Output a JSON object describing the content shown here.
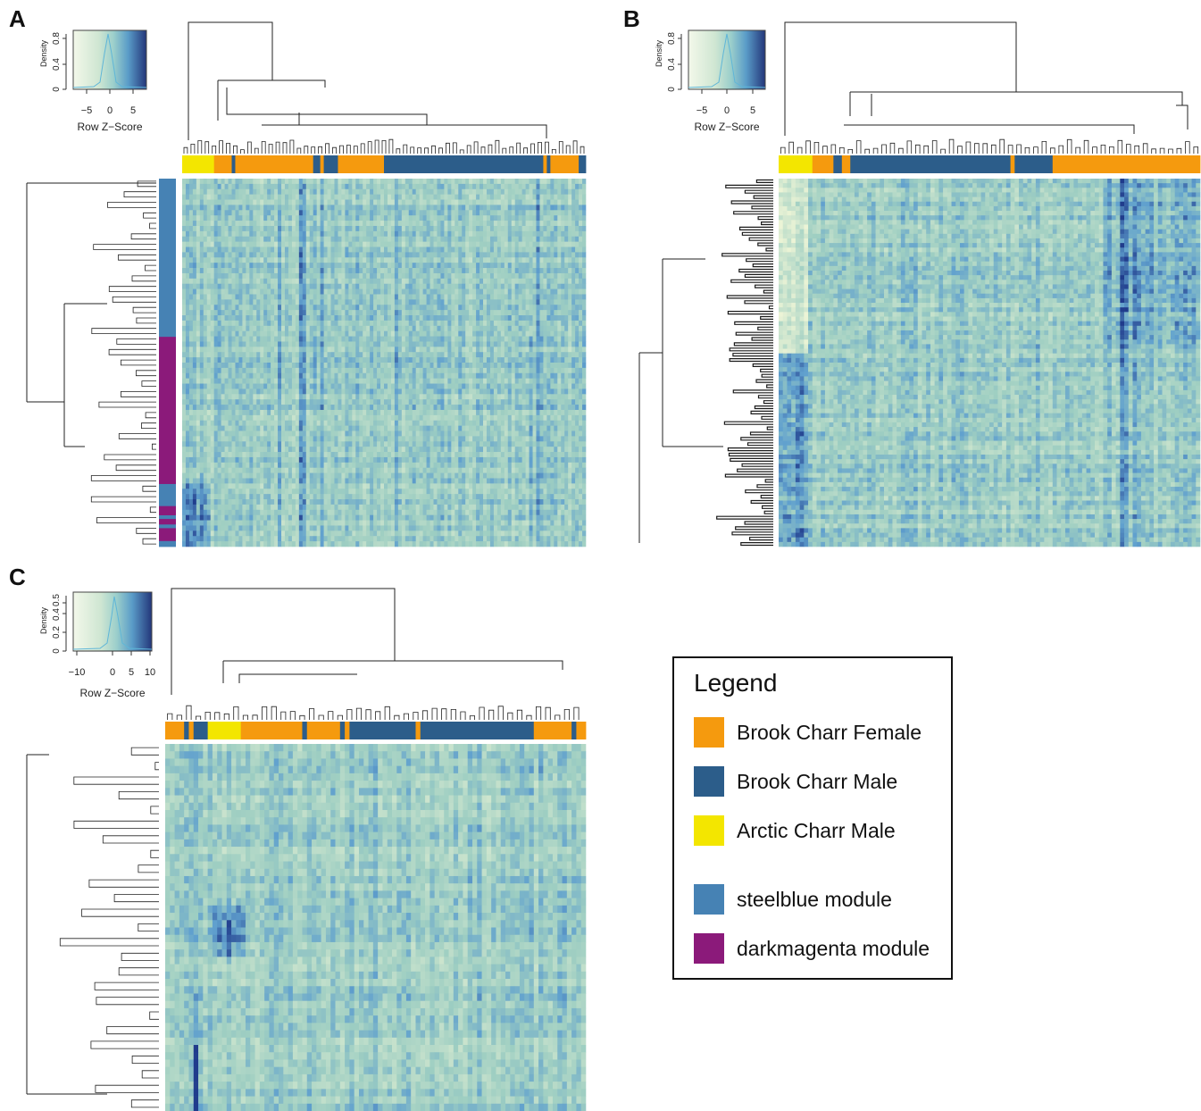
{
  "colors": {
    "brook_female": "#f59a0e",
    "brook_male": "#2c5d8a",
    "arctic_male": "#f3e600",
    "steelblue": "#4682b4",
    "darkmagenta": "#8b1a7a"
  },
  "chart_data": [
    {
      "type": "heatmap",
      "panel": "A",
      "color_key": {
        "title": "",
        "xlabel": "Row Z−Score",
        "ylabel": "Density",
        "xticks": [
          "−5",
          "0",
          "5"
        ],
        "yticks": [
          "0",
          "0.4",
          "0.8"
        ],
        "xlim": [
          -8,
          8
        ],
        "ylim": [
          0,
          0.9
        ]
      },
      "column_groups": [
        {
          "group": "arctic_male",
          "count": 9
        },
        {
          "group": "brook_female",
          "count": 5
        },
        {
          "group": "brook_male",
          "count": 1
        },
        {
          "group": "brook_female",
          "count": 22
        },
        {
          "group": "brook_male",
          "count": 2
        },
        {
          "group": "brook_female",
          "count": 1
        },
        {
          "group": "brook_male",
          "count": 4
        },
        {
          "group": "brook_female",
          "count": 13
        },
        {
          "group": "brook_male",
          "count": 45
        },
        {
          "group": "brook_female",
          "count": 1
        },
        {
          "group": "brook_male",
          "count": 1
        },
        {
          "group": "brook_female",
          "count": 8
        },
        {
          "group": "brook_male",
          "count": 2
        }
      ],
      "row_modules": [
        {
          "module": "steelblue",
          "count": 86
        },
        {
          "module": "darkmagenta",
          "count": 80
        },
        {
          "module": "steelblue",
          "count": 12
        },
        {
          "module": "darkmagenta",
          "count": 5
        },
        {
          "module": "steelblue",
          "count": 2
        },
        {
          "module": "darkmagenta",
          "count": 3
        },
        {
          "module": "steelblue",
          "count": 2
        },
        {
          "module": "darkmagenta",
          "count": 7
        },
        {
          "module": "steelblue",
          "count": 3
        }
      ]
    },
    {
      "type": "heatmap",
      "panel": "B",
      "color_key": {
        "title": "",
        "xlabel": "Row Z−Score",
        "ylabel": "Density",
        "xticks": [
          "−5",
          "0",
          "5"
        ],
        "yticks": [
          "0",
          "0.4",
          "0.8"
        ],
        "xlim": [
          -8,
          8
        ],
        "ylim": [
          0,
          0.9
        ]
      },
      "column_groups": [
        {
          "group": "arctic_male",
          "count": 8
        },
        {
          "group": "brook_female",
          "count": 5
        },
        {
          "group": "brook_male",
          "count": 2
        },
        {
          "group": "brook_female",
          "count": 2
        },
        {
          "group": "brook_male",
          "count": 38
        },
        {
          "group": "brook_female",
          "count": 1
        },
        {
          "group": "brook_male",
          "count": 9
        },
        {
          "group": "brook_female",
          "count": 35
        }
      ]
    },
    {
      "type": "heatmap",
      "panel": "C",
      "color_key": {
        "title": "",
        "xlabel": "Row Z−Score",
        "ylabel": "Density",
        "xticks": [
          "−10",
          "0",
          "5",
          "10"
        ],
        "yticks": [
          "0",
          "0.2",
          "0.4",
          "0.5"
        ],
        "xlim": [
          -12,
          11
        ],
        "ylim": [
          0,
          0.6
        ]
      },
      "column_groups": [
        {
          "group": "brook_female",
          "count": 4
        },
        {
          "group": "brook_male",
          "count": 1
        },
        {
          "group": "brook_female",
          "count": 1
        },
        {
          "group": "brook_male",
          "count": 3
        },
        {
          "group": "arctic_male",
          "count": 7
        },
        {
          "group": "brook_female",
          "count": 13
        },
        {
          "group": "brook_male",
          "count": 1
        },
        {
          "group": "brook_female",
          "count": 7
        },
        {
          "group": "brook_male",
          "count": 1
        },
        {
          "group": "brook_female",
          "count": 1
        },
        {
          "group": "brook_male",
          "count": 14
        },
        {
          "group": "brook_female",
          "count": 1
        },
        {
          "group": "brook_male",
          "count": 24
        },
        {
          "group": "brook_female",
          "count": 8
        },
        {
          "group": "brook_male",
          "count": 1
        },
        {
          "group": "brook_female",
          "count": 2
        }
      ]
    }
  ],
  "panel_labels": [
    "A",
    "B",
    "C"
  ],
  "legend": {
    "title": "Legend",
    "items": [
      {
        "label": "Brook Charr Female",
        "color": "#f59a0e"
      },
      {
        "label": "Brook Charr Male",
        "color": "#2c5d8a"
      },
      {
        "label": "Arctic Charr Male",
        "color": "#f3e600"
      },
      {
        "label": "steelblue module",
        "color": "#4682b4"
      },
      {
        "label": "darkmagenta module",
        "color": "#8b1a7a"
      }
    ]
  }
}
